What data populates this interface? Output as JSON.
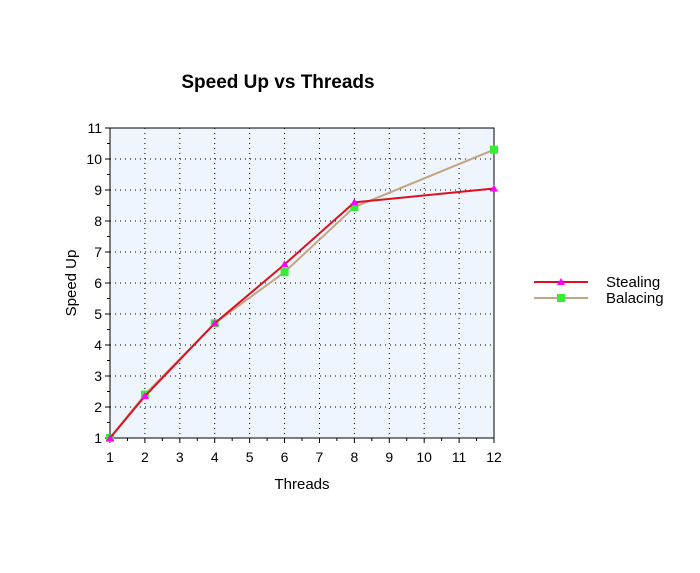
{
  "chart_data": {
    "type": "line",
    "title": "Speed Up vs Threads",
    "xlabel": "Threads",
    "ylabel": "Speed Up",
    "xlim": [
      1,
      12
    ],
    "ylim": [
      1,
      11
    ],
    "xticks": [
      1,
      2,
      3,
      4,
      5,
      6,
      7,
      8,
      9,
      10,
      11,
      12
    ],
    "yticks": [
      1,
      2,
      3,
      4,
      5,
      6,
      7,
      8,
      9,
      10,
      11
    ],
    "grid": true,
    "plot_background": "#eef5fc",
    "legend_position": "right",
    "series": [
      {
        "name": "Stealing",
        "line_color": "#dd1020",
        "marker": "triangle",
        "marker_color": "#ff00ff",
        "x": [
          1,
          2,
          4,
          6,
          8,
          12
        ],
        "y": [
          1,
          2.35,
          4.7,
          6.6,
          8.6,
          9.05
        ]
      },
      {
        "name": "Balacing",
        "line_color": "#c4a483",
        "marker": "square",
        "marker_color": "#33ee33",
        "x": [
          1,
          2,
          4,
          6,
          8,
          12
        ],
        "y": [
          1,
          2.4,
          4.7,
          6.35,
          8.45,
          10.3
        ]
      }
    ]
  }
}
